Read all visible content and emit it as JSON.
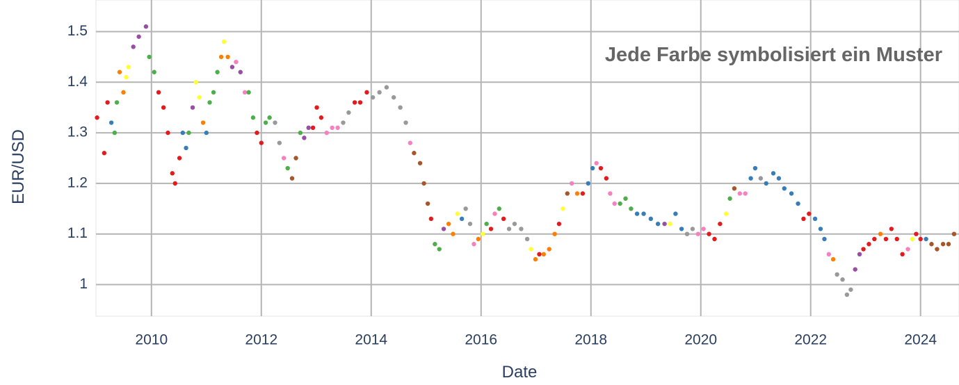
{
  "chart_data": {
    "type": "scatter",
    "xlabel": "Date",
    "ylabel": "EUR/USD",
    "annotation": "Jede Farbe symbolisiert ein Muster",
    "xlim": [
      2008.99,
      2024.7
    ],
    "ylim": [
      0.9375,
      1.5625
    ],
    "xticks": [
      2010,
      2012,
      2014,
      2016,
      2018,
      2020,
      2022,
      2024
    ],
    "yticks": [
      1,
      1.1,
      1.2,
      1.3,
      1.4,
      1.5
    ],
    "grid": true,
    "x": [
      2009.01,
      2009.14,
      2009.2,
      2009.27,
      2009.33,
      2009.37,
      2009.42,
      2009.49,
      2009.54,
      2009.58,
      2009.67,
      2009.77,
      2009.9,
      2009.96,
      2010.05,
      2010.13,
      2010.22,
      2010.3,
      2010.38,
      2010.43,
      2010.51,
      2010.57,
      2010.63,
      2010.68,
      2010.75,
      2010.81,
      2010.87,
      2010.94,
      2011.0,
      2011.06,
      2011.13,
      2011.2,
      2011.27,
      2011.32,
      2011.39,
      2011.47,
      2011.54,
      2011.62,
      2011.7,
      2011.77,
      2011.85,
      2011.92,
      2012.0,
      2012.08,
      2012.15,
      2012.25,
      2012.33,
      2012.41,
      2012.48,
      2012.56,
      2012.63,
      2012.71,
      2012.78,
      2012.86,
      2012.94,
      2013.01,
      2013.09,
      2013.19,
      2013.29,
      2013.39,
      2013.49,
      2013.59,
      2013.7,
      2013.8,
      2013.92,
      2014.03,
      2014.15,
      2014.28,
      2014.41,
      2014.53,
      2014.63,
      2014.71,
      2014.78,
      2014.89,
      2014.96,
      2015.03,
      2015.09,
      2015.16,
      2015.24,
      2015.32,
      2015.41,
      2015.49,
      2015.57,
      2015.65,
      2015.72,
      2015.8,
      2015.87,
      2015.95,
      2016.03,
      2016.1,
      2016.18,
      2016.25,
      2016.33,
      2016.41,
      2016.51,
      2016.61,
      2016.73,
      2016.84,
      2016.91,
      2016.99,
      2017.06,
      2017.14,
      2017.24,
      2017.34,
      2017.42,
      2017.49,
      2017.57,
      2017.65,
      2017.75,
      2017.85,
      2017.95,
      2018.03,
      2018.1,
      2018.18,
      2018.28,
      2018.35,
      2018.43,
      2018.53,
      2018.63,
      2018.73,
      2018.84,
      2018.96,
      2019.09,
      2019.22,
      2019.34,
      2019.44,
      2019.54,
      2019.65,
      2019.75,
      2019.85,
      2019.95,
      2020.05,
      2020.15,
      2020.25,
      2020.35,
      2020.46,
      2020.53,
      2020.61,
      2020.71,
      2020.81,
      2020.91,
      2020.99,
      2021.09,
      2021.19,
      2021.32,
      2021.42,
      2021.52,
      2021.65,
      2021.77,
      2021.87,
      2021.97,
      2022.08,
      2022.18,
      2022.25,
      2022.33,
      2022.41,
      2022.48,
      2022.58,
      2022.66,
      2022.73,
      2022.81,
      2022.89,
      2022.96,
      2023.06,
      2023.16,
      2023.27,
      2023.37,
      2023.47,
      2023.57,
      2023.67,
      2023.77,
      2023.85,
      2023.92,
      2024.0,
      2024.1,
      2024.2,
      2024.3,
      2024.41,
      2024.51,
      2024.61
    ],
    "values": [
      1.33,
      1.26,
      1.36,
      1.32,
      1.3,
      1.36,
      1.42,
      1.38,
      1.41,
      1.43,
      1.47,
      1.49,
      1.51,
      1.45,
      1.42,
      1.38,
      1.35,
      1.3,
      1.22,
      1.2,
      1.25,
      1.3,
      1.27,
      1.3,
      1.35,
      1.4,
      1.37,
      1.32,
      1.3,
      1.36,
      1.38,
      1.42,
      1.45,
      1.48,
      1.45,
      1.43,
      1.44,
      1.42,
      1.38,
      1.38,
      1.33,
      1.3,
      1.28,
      1.32,
      1.33,
      1.32,
      1.28,
      1.25,
      1.23,
      1.21,
      1.25,
      1.3,
      1.29,
      1.31,
      1.31,
      1.35,
      1.33,
      1.3,
      1.31,
      1.31,
      1.32,
      1.34,
      1.36,
      1.36,
      1.38,
      1.37,
      1.38,
      1.39,
      1.37,
      1.35,
      1.32,
      1.28,
      1.26,
      1.24,
      1.2,
      1.16,
      1.13,
      1.08,
      1.07,
      1.11,
      1.12,
      1.1,
      1.14,
      1.13,
      1.15,
      1.12,
      1.08,
      1.09,
      1.1,
      1.12,
      1.11,
      1.14,
      1.15,
      1.13,
      1.11,
      1.12,
      1.11,
      1.09,
      1.07,
      1.05,
      1.06,
      1.06,
      1.07,
      1.1,
      1.12,
      1.15,
      1.18,
      1.2,
      1.18,
      1.18,
      1.2,
      1.23,
      1.24,
      1.23,
      1.21,
      1.18,
      1.16,
      1.16,
      1.17,
      1.15,
      1.14,
      1.14,
      1.13,
      1.12,
      1.12,
      1.12,
      1.14,
      1.11,
      1.1,
      1.11,
      1.1,
      1.11,
      1.1,
      1.09,
      1.12,
      1.14,
      1.17,
      1.19,
      1.18,
      1.18,
      1.21,
      1.23,
      1.21,
      1.2,
      1.22,
      1.21,
      1.19,
      1.18,
      1.16,
      1.13,
      1.14,
      1.13,
      1.11,
      1.09,
      1.06,
      1.05,
      1.02,
      1.01,
      0.98,
      0.99,
      1.03,
      1.06,
      1.07,
      1.08,
      1.09,
      1.1,
      1.09,
      1.11,
      1.09,
      1.06,
      1.07,
      1.09,
      1.1,
      1.09,
      1.09,
      1.08,
      1.07,
      1.08,
      1.08,
      1.1
    ],
    "colors": [
      "#e41a1c",
      "#e41a1c",
      "#e41a1c",
      "#377eb8",
      "#4daf4a",
      "#4daf4a",
      "#ff7f00",
      "#ff7f00",
      "#ffff33",
      "#ffff33",
      "#984ea3",
      "#984ea3",
      "#984ea3",
      "#4daf4a",
      "#4daf4a",
      "#e41a1c",
      "#e41a1c",
      "#e41a1c",
      "#e41a1c",
      "#e41a1c",
      "#e41a1c",
      "#377eb8",
      "#377eb8",
      "#4daf4a",
      "#984ea3",
      "#ffff33",
      "#ffff33",
      "#ff7f00",
      "#377eb8",
      "#4daf4a",
      "#4daf4a",
      "#4daf4a",
      "#ff7f00",
      "#ffff33",
      "#ff7f00",
      "#984ea3",
      "#f781bf",
      "#984ea3",
      "#f781bf",
      "#4daf4a",
      "#4daf4a",
      "#e41a1c",
      "#e41a1c",
      "#4daf4a",
      "#4daf4a",
      "#999999",
      "#999999",
      "#f781bf",
      "#4daf4a",
      "#a65628",
      "#a65628",
      "#4daf4a",
      "#984ea3",
      "#984ea3",
      "#e41a1c",
      "#e41a1c",
      "#e41a1c",
      "#f781bf",
      "#f781bf",
      "#f781bf",
      "#999999",
      "#999999",
      "#e41a1c",
      "#e41a1c",
      "#e41a1c",
      "#999999",
      "#999999",
      "#999999",
      "#999999",
      "#999999",
      "#999999",
      "#f781bf",
      "#a65628",
      "#a65628",
      "#a65628",
      "#a65628",
      "#e41a1c",
      "#4daf4a",
      "#4daf4a",
      "#984ea3",
      "#ff7f00",
      "#ff7f00",
      "#ffff33",
      "#377eb8",
      "#999999",
      "#999999",
      "#f781bf",
      "#ff7f00",
      "#ffff33",
      "#4daf4a",
      "#e41a1c",
      "#f781bf",
      "#4daf4a",
      "#e41a1c",
      "#999999",
      "#999999",
      "#999999",
      "#999999",
      "#ffff33",
      "#ff7f00",
      "#e41a1c",
      "#ff7f00",
      "#ff7f00",
      "#ff7f00",
      "#e41a1c",
      "#ffff33",
      "#a65628",
      "#f781bf",
      "#ff7f00",
      "#e41a1c",
      "#377eb8",
      "#377eb8",
      "#f781bf",
      "#e41a1c",
      "#e41a1c",
      "#f781bf",
      "#f781bf",
      "#4daf4a",
      "#4daf4a",
      "#4daf4a",
      "#377eb8",
      "#377eb8",
      "#377eb8",
      "#377eb8",
      "#984ea3",
      "#ffff33",
      "#377eb8",
      "#377eb8",
      "#999999",
      "#999999",
      "#f781bf",
      "#f781bf",
      "#e41a1c",
      "#e41a1c",
      "#e41a1c",
      "#ffff33",
      "#4daf4a",
      "#a65628",
      "#f781bf",
      "#f781bf",
      "#377eb8",
      "#377eb8",
      "#999999",
      "#377eb8",
      "#377eb8",
      "#377eb8",
      "#377eb8",
      "#377eb8",
      "#377eb8",
      "#e41a1c",
      "#e41a1c",
      "#377eb8",
      "#377eb8",
      "#377eb8",
      "#f781bf",
      "#ff7f00",
      "#999999",
      "#999999",
      "#999999",
      "#999999",
      "#984ea3",
      "#984ea3",
      "#e41a1c",
      "#e41a1c",
      "#e41a1c",
      "#ff7f00",
      "#e41a1c",
      "#e41a1c",
      "#e41a1c",
      "#e41a1c",
      "#f781bf",
      "#ffff33",
      "#e41a1c",
      "#e41a1c",
      "#377eb8",
      "#a65628",
      "#a65628",
      "#a65628",
      "#a65628",
      "#a65628"
    ]
  }
}
